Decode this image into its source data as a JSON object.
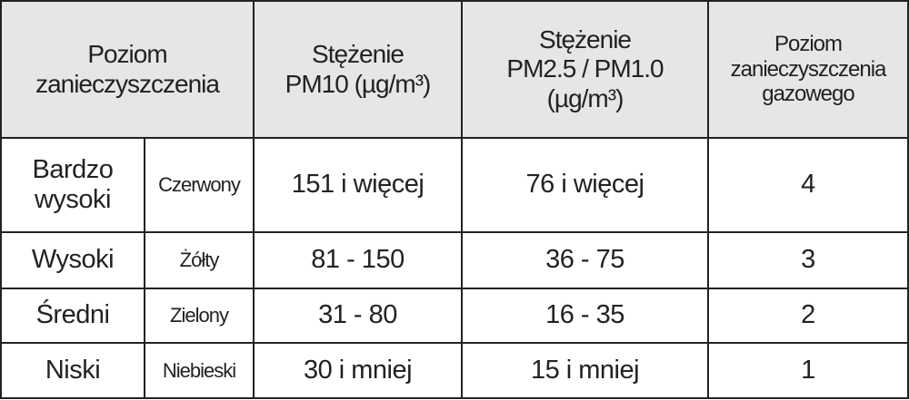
{
  "table": {
    "headers": [
      [
        "Poziom",
        "zanieczyszczenia"
      ],
      [
        "Stężenie",
        "PM10 (µg/m³)"
      ],
      [
        "Stężenie",
        "PM2.5 / PM1.0",
        "(µg/m³)"
      ],
      [
        "Poziom",
        "zanieczyszczenia",
        "gazowego"
      ]
    ],
    "rows": [
      [
        "Bardzo wysoki",
        "Czerwony",
        "151 i więcej",
        "76 i więcej",
        "4"
      ],
      [
        "Wysoki",
        "Żółty",
        "81 - 150",
        "36 - 75",
        "3"
      ],
      [
        "Średni",
        "Zielony",
        "31 - 80",
        "16 - 35",
        "2"
      ],
      [
        "Niski",
        "Niebieski",
        "30 i mniej",
        "15 i mniej",
        "1"
      ]
    ]
  }
}
